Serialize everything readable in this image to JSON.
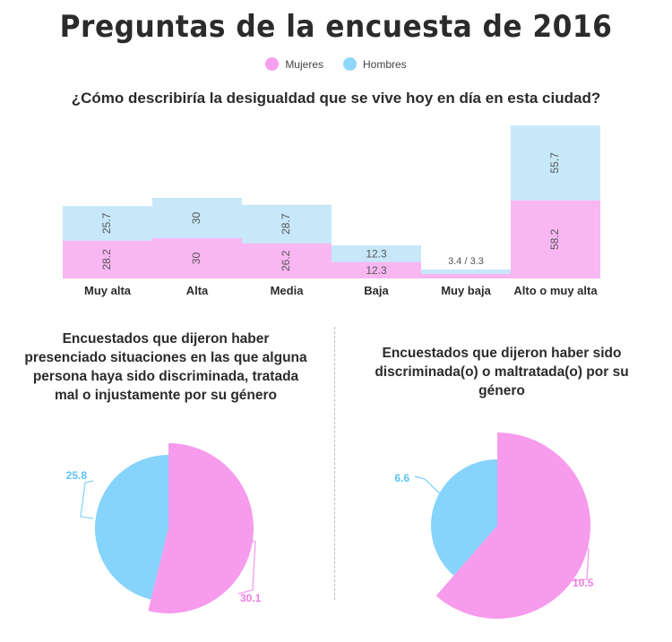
{
  "title": "Preguntas de la encuesta de 2016",
  "legend": [
    {
      "label": "Mujeres",
      "color": "#f7a0ee"
    },
    {
      "label": "Hombres",
      "color": "#8fd6fb"
    }
  ],
  "chart_data": [
    {
      "type": "bar",
      "stacked": true,
      "title": "¿Cómo describiría la desigualdad que se vive hoy en día en esta ciudad?",
      "categories": [
        "Muy alta",
        "Alta",
        "Media",
        "Baja",
        "Muy baja",
        "Alto o muy alta"
      ],
      "series": [
        {
          "name": "Mujeres",
          "values": [
            28.2,
            30,
            26.2,
            12.3,
            3.4,
            58.2
          ],
          "color": "#f9b7f2"
        },
        {
          "name": "Hombres",
          "values": [
            25.7,
            30,
            28.7,
            12.3,
            3.3,
            55.7
          ],
          "color": "#c6e8f9"
        }
      ],
      "combined_label_muy_baja": "3.4 / 3.3"
    },
    {
      "type": "pie",
      "title": "Encuestados que dijeron haber presenciado situaciones en las que alguna persona haya sido discriminada, tratada mal o injustamente por su género",
      "slices": [
        {
          "name": "Mujeres",
          "value": 30.1,
          "color": "#f79bed"
        },
        {
          "name": "Hombres",
          "value": 25.8,
          "color": "#86d3fb"
        }
      ]
    },
    {
      "type": "pie",
      "title": "Encuestados que dijeron haber sido discriminada(o) o maltratada(o) por su género",
      "slices": [
        {
          "name": "Mujeres",
          "value": 10.5,
          "color": "#f79bed"
        },
        {
          "name": "Hombres",
          "value": 6.6,
          "color": "#86d3fb"
        }
      ]
    }
  ]
}
